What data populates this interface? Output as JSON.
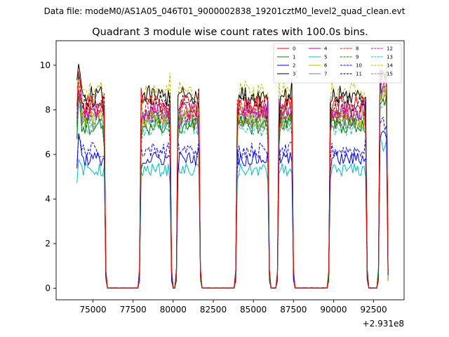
{
  "suptitle": "Data file: modeM0/AS1A05_046T01_9000002838_19201cztM0_level2_quad_clean.evt",
  "chart_data": {
    "type": "line",
    "title": "Quadrant 3 module wise count rates with 100.0s bins.",
    "xlabel": "",
    "ylabel": "",
    "x_offset_label": "+2.931e8",
    "xlim": [
      72700,
      94400
    ],
    "ylim": [
      -0.52,
      11.1
    ],
    "x_ticks": [
      75000,
      77500,
      80000,
      82500,
      85000,
      87500,
      90000,
      92500
    ],
    "x_tick_labels": [
      "75000",
      "77500",
      "80000",
      "82500",
      "85000",
      "87500",
      "90000",
      "92500"
    ],
    "y_ticks": [
      0,
      2,
      4,
      6,
      8,
      10
    ],
    "y_tick_labels": [
      "0",
      "2",
      "4",
      "6",
      "8",
      "10"
    ],
    "time_step_s": 100,
    "segments": [
      {
        "start": 74000,
        "end": 75700
      },
      {
        "start": 78000,
        "end": 79800
      },
      {
        "start": 80300,
        "end": 81600
      },
      {
        "start": 84000,
        "end": 85900
      },
      {
        "start": 86600,
        "end": 87400
      },
      {
        "start": 89800,
        "end": 92000
      },
      {
        "start": 92900,
        "end": 93300
      }
    ],
    "legend_position": "upper right",
    "series": [
      {
        "name": "0",
        "color": "#ff0000",
        "dash": "solid",
        "level": 8.2,
        "start_peak": 10.2
      },
      {
        "name": "1",
        "color": "#008000",
        "dash": "solid",
        "level": 7.3,
        "start_peak": 9.0
      },
      {
        "name": "2",
        "color": "#0000ff",
        "dash": "solid",
        "level": 5.8,
        "start_peak": 7.3
      },
      {
        "name": "3",
        "color": "#000000",
        "dash": "solid",
        "level": 8.6,
        "start_peak": 10.5
      },
      {
        "name": "4",
        "color": "#bf00bf",
        "dash": "solid",
        "level": 7.9,
        "start_peak": 9.2
      },
      {
        "name": "5",
        "color": "#00bfbf",
        "dash": "solid",
        "level": 5.3,
        "start_peak": 5.9
      },
      {
        "name": "6",
        "color": "#bfbf00",
        "dash": "solid",
        "level": 7.6,
        "start_peak": 9.4
      },
      {
        "name": "7",
        "color": "#808080",
        "dash": "solid",
        "level": 7.5,
        "start_peak": 9.0
      },
      {
        "name": "8",
        "color": "#ff0000",
        "dash": "dashed",
        "level": 8.0,
        "start_peak": 9.6
      },
      {
        "name": "9",
        "color": "#008000",
        "dash": "dashed",
        "level": 7.6,
        "start_peak": 9.2
      },
      {
        "name": "10",
        "color": "#0000ff",
        "dash": "dashed",
        "level": 6.2,
        "start_peak": 7.0
      },
      {
        "name": "11",
        "color": "#000000",
        "dash": "dashed",
        "level": 8.3,
        "start_peak": 10.0
      },
      {
        "name": "12",
        "color": "#bf00bf",
        "dash": "dashed",
        "level": 7.7,
        "start_peak": 9.1
      },
      {
        "name": "13",
        "color": "#00bfbf",
        "dash": "dashed",
        "level": 7.2,
        "start_peak": 8.6
      },
      {
        "name": "14",
        "color": "#bfbf00",
        "dash": "dashed",
        "level": 8.8,
        "start_peak": 9.7
      },
      {
        "name": "15",
        "color": "#808080",
        "dash": "dashed",
        "level": 7.8,
        "start_peak": 9.3
      }
    ]
  }
}
